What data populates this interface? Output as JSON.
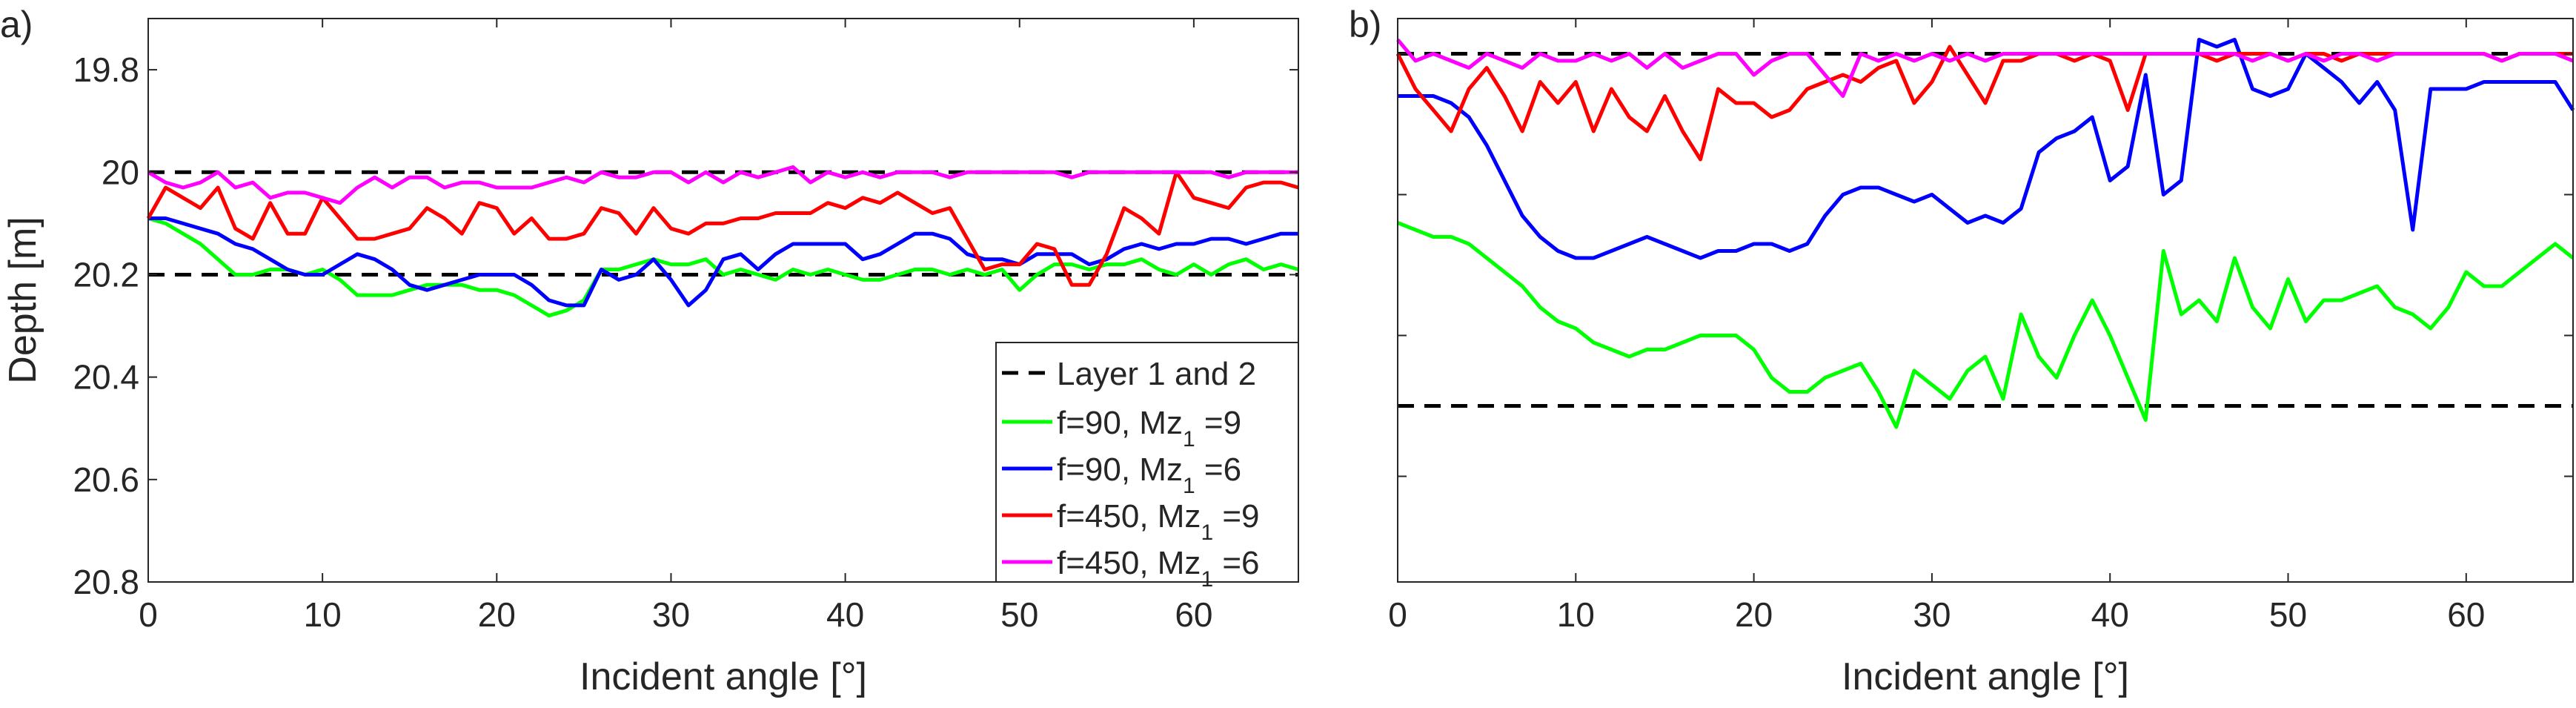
{
  "chart_data": [
    {
      "type": "line",
      "panel_label": "a)",
      "xlabel": "Incident angle [°]",
      "ylabel": "Depth [m]",
      "xlim": [
        0,
        66
      ],
      "ylim": [
        19.7,
        20.8
      ],
      "y_reversed": true,
      "xticks": [
        0,
        10,
        20,
        30,
        40,
        50,
        60
      ],
      "yticks": [
        19.8,
        20,
        20.2,
        20.4,
        20.6,
        20.8
      ],
      "xtick_labels": [
        "0",
        "10",
        "20",
        "30",
        "40",
        "50",
        "60"
      ],
      "ytick_labels": [
        "19.8",
        "20",
        "20.2",
        "20.4",
        "20.6",
        "20.8"
      ],
      "legend": {
        "location": "bottom-right",
        "entries": [
          "Layer 1 and 2",
          "f=90, Mz",
          "f=90, Mz",
          "f=450, Mz",
          "f=450, Mz"
        ],
        "entry_sub": [
          "",
          "1",
          "1",
          "1",
          "1"
        ],
        "entry_tail": [
          "",
          " =9",
          " =6",
          " =9",
          " =6"
        ]
      },
      "reference_lines": {
        "name": "Layer 1 and 2",
        "values": [
          20.0,
          20.2
        ],
        "color": "#000000",
        "style": "dashed"
      },
      "series": [
        {
          "name": "f=90, Mz1 =9",
          "color": "#00ff00",
          "values": [
            20.09,
            20.1,
            20.12,
            20.14,
            20.17,
            20.2,
            20.2,
            20.19,
            20.19,
            20.2,
            20.19,
            20.21,
            20.24,
            20.24,
            20.24,
            20.23,
            20.22,
            20.22,
            20.22,
            20.23,
            20.23,
            20.24,
            20.26,
            20.28,
            20.27,
            20.25,
            20.19,
            20.19,
            20.18,
            20.17,
            20.18,
            20.18,
            20.17,
            20.2,
            20.19,
            20.2,
            20.21,
            20.19,
            20.2,
            20.19,
            20.2,
            20.21,
            20.21,
            20.2,
            20.19,
            20.19,
            20.2,
            20.19,
            20.2,
            20.19,
            20.23,
            20.2,
            20.18,
            20.18,
            20.19,
            20.18,
            20.18,
            20.17,
            20.19,
            20.2,
            20.18,
            20.2,
            20.18,
            20.17,
            20.19,
            20.18,
            20.19
          ]
        },
        {
          "name": "f=90, Mz1 =6",
          "color": "#0000ff",
          "values": [
            20.09,
            20.09,
            20.1,
            20.11,
            20.12,
            20.14,
            20.15,
            20.17,
            20.19,
            20.2,
            20.2,
            20.18,
            20.16,
            20.17,
            20.19,
            20.22,
            20.23,
            20.22,
            20.21,
            20.2,
            20.2,
            20.2,
            20.22,
            20.25,
            20.26,
            20.26,
            20.19,
            20.21,
            20.2,
            20.17,
            20.21,
            20.26,
            20.23,
            20.17,
            20.16,
            20.19,
            20.16,
            20.14,
            20.14,
            20.14,
            20.14,
            20.17,
            20.16,
            20.14,
            20.12,
            20.12,
            20.13,
            20.16,
            20.17,
            20.17,
            20.18,
            20.16,
            20.16,
            20.16,
            20.18,
            20.17,
            20.15,
            20.14,
            20.15,
            20.14,
            20.14,
            20.13,
            20.13,
            20.14,
            20.13,
            20.12,
            20.12
          ]
        },
        {
          "name": "f=450, Mz1 =9",
          "color": "#ff0000",
          "values": [
            20.09,
            20.03,
            20.05,
            20.07,
            20.03,
            20.11,
            20.13,
            20.06,
            20.12,
            20.12,
            20.05,
            20.09,
            20.13,
            20.13,
            20.12,
            20.11,
            20.07,
            20.09,
            20.12,
            20.06,
            20.07,
            20.12,
            20.09,
            20.13,
            20.13,
            20.12,
            20.07,
            20.08,
            20.12,
            20.07,
            20.11,
            20.12,
            20.1,
            20.1,
            20.09,
            20.09,
            20.08,
            20.08,
            20.08,
            20.06,
            20.07,
            20.05,
            20.06,
            20.04,
            20.06,
            20.08,
            20.07,
            20.13,
            20.19,
            20.18,
            20.18,
            20.14,
            20.15,
            20.22,
            20.22,
            20.16,
            20.07,
            20.09,
            20.12,
            20.0,
            20.05,
            20.06,
            20.07,
            20.03,
            20.02,
            20.02,
            20.03
          ]
        },
        {
          "name": "f=450, Mz1 =6",
          "color": "#ff00ff",
          "values": [
            20.0,
            20.02,
            20.03,
            20.02,
            20.0,
            20.03,
            20.02,
            20.05,
            20.04,
            20.04,
            20.05,
            20.06,
            20.03,
            20.01,
            20.03,
            20.01,
            20.01,
            20.03,
            20.02,
            20.02,
            20.03,
            20.03,
            20.03,
            20.02,
            20.01,
            20.02,
            20.0,
            20.01,
            20.01,
            20.0,
            20.0,
            20.02,
            20.0,
            20.02,
            20.0,
            20.01,
            20.0,
            19.99,
            20.02,
            20.0,
            20.01,
            20.0,
            20.01,
            20.0,
            20.0,
            20.0,
            20.01,
            20.0,
            20.0,
            20.0,
            20.0,
            20.0,
            20.0,
            20.01,
            20.0,
            20.0,
            20.0,
            20.0,
            20.0,
            20.0,
            20.0,
            20.0,
            20.01,
            20.0,
            20.0,
            20.0,
            20.0
          ]
        }
      ]
    },
    {
      "type": "line",
      "panel_label": "b)",
      "xlabel": "Incident angle [°]",
      "ylabel": "",
      "xlim": [
        0,
        66
      ],
      "ylim": [
        19.95,
        20.75
      ],
      "y_reversed": true,
      "xticks": [
        0,
        10,
        20,
        30,
        40,
        50,
        60
      ],
      "yticks": [
        20.0,
        20.2,
        20.4,
        20.6
      ],
      "xtick_labels": [
        "0",
        "10",
        "20",
        "30",
        "40",
        "50",
        "60"
      ],
      "ytick_labels": [],
      "reference_lines": {
        "name": "Layer 1 and 2",
        "values": [
          20.0,
          20.5
        ],
        "color": "#000000",
        "style": "dashed"
      },
      "series": [
        {
          "name": "f=90, Mz1 =9",
          "color": "#00ff00",
          "values": [
            20.24,
            20.25,
            20.26,
            20.26,
            20.27,
            20.29,
            20.31,
            20.33,
            20.36,
            20.38,
            20.39,
            20.41,
            20.42,
            20.43,
            20.42,
            20.42,
            20.41,
            20.4,
            20.4,
            20.4,
            20.42,
            20.46,
            20.48,
            20.48,
            20.46,
            20.45,
            20.44,
            20.48,
            20.53,
            20.45,
            20.47,
            20.49,
            20.45,
            20.43,
            20.49,
            20.37,
            20.43,
            20.46,
            20.4,
            20.35,
            20.4,
            20.46,
            20.52,
            20.28,
            20.37,
            20.35,
            20.38,
            20.29,
            20.36,
            20.39,
            20.32,
            20.38,
            20.35,
            20.35,
            20.34,
            20.33,
            20.36,
            20.37,
            20.39,
            20.36,
            20.31,
            20.33,
            20.33,
            20.31,
            20.29,
            20.27,
            20.29
          ]
        },
        {
          "name": "f=90, Mz1 =6",
          "color": "#0000ff",
          "values": [
            20.06,
            20.06,
            20.06,
            20.07,
            20.09,
            20.13,
            20.18,
            20.23,
            20.26,
            20.28,
            20.29,
            20.29,
            20.28,
            20.27,
            20.26,
            20.27,
            20.28,
            20.29,
            20.28,
            20.28,
            20.27,
            20.27,
            20.28,
            20.27,
            20.23,
            20.2,
            20.19,
            20.19,
            20.2,
            20.21,
            20.2,
            20.22,
            20.24,
            20.23,
            20.24,
            20.22,
            20.14,
            20.12,
            20.11,
            20.09,
            20.18,
            20.16,
            20.03,
            20.2,
            20.18,
            19.98,
            19.99,
            19.98,
            20.05,
            20.06,
            20.05,
            20.0,
            20.02,
            20.04,
            20.07,
            20.04,
            20.08,
            20.25,
            20.05,
            20.05,
            20.05,
            20.04,
            20.04,
            20.04,
            20.04,
            20.04,
            20.08
          ]
        },
        {
          "name": "f=450, Mz1 =9",
          "color": "#ff0000",
          "values": [
            20.0,
            20.05,
            20.08,
            20.11,
            20.05,
            20.02,
            20.06,
            20.11,
            20.04,
            20.07,
            20.04,
            20.11,
            20.05,
            20.09,
            20.11,
            20.06,
            20.11,
            20.15,
            20.05,
            20.07,
            20.07,
            20.09,
            20.08,
            20.05,
            20.04,
            20.03,
            20.04,
            20.02,
            20.01,
            20.07,
            20.04,
            19.99,
            20.03,
            20.07,
            20.01,
            20.01,
            20.0,
            20.0,
            20.01,
            20.0,
            20.01,
            20.08,
            20.0,
            20.0,
            20.0,
            20.0,
            20.01,
            20.0,
            20.0,
            20.0,
            20.01,
            20.0,
            20.0,
            20.01,
            20.0,
            20.0,
            20.0,
            20.0,
            20.0,
            20.0,
            20.0,
            20.0,
            20.01,
            20.0,
            20.0,
            20.0,
            20.0
          ]
        },
        {
          "name": "f=450, Mz1 =6",
          "color": "#ff00ff",
          "values": [
            19.98,
            20.01,
            20.0,
            20.01,
            20.02,
            20.0,
            20.01,
            20.02,
            20.0,
            20.01,
            20.01,
            20.0,
            20.01,
            20.0,
            20.02,
            20.0,
            20.02,
            20.01,
            20.0,
            20.0,
            20.03,
            20.01,
            20.0,
            20.0,
            20.03,
            20.06,
            20.0,
            20.01,
            20.0,
            20.01,
            20.0,
            20.01,
            20.0,
            20.01,
            20.0,
            20.0,
            20.0,
            20.0,
            20.0,
            20.0,
            20.0,
            20.0,
            20.0,
            20.0,
            20.0,
            20.0,
            20.0,
            20.0,
            20.01,
            20.0,
            20.01,
            20.0,
            20.01,
            20.0,
            20.0,
            20.01,
            20.0,
            20.0,
            20.0,
            20.0,
            20.0,
            20.0,
            20.01,
            20.0,
            20.0,
            20.0,
            20.01
          ]
        }
      ]
    }
  ]
}
